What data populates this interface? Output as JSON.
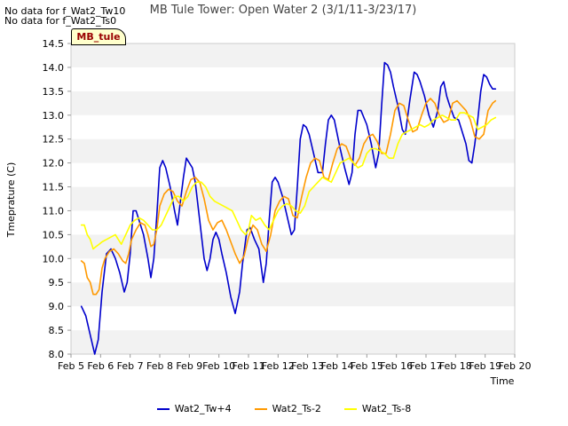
{
  "no_data_messages": [
    "No data for f_Wat2_Tw10",
    "No data for f_Wat2_Ts0"
  ],
  "site_label": "MB_tule",
  "chart_data": {
    "type": "line",
    "title": "MB Tule Tower: Open Water 2 (3/1/11-3/23/17)",
    "xlabel": "Time",
    "ylabel": "Tmeprature (C)",
    "xlim": [
      5,
      20
    ],
    "ylim": [
      8.0,
      14.5
    ],
    "x_ticks": [
      5,
      6,
      7,
      8,
      9,
      10,
      11,
      12,
      13,
      14,
      15,
      16,
      17,
      18,
      19,
      20
    ],
    "x_tick_labels": [
      "Feb 5",
      "Feb 6",
      "Feb 7",
      "Feb 8",
      "Feb 9",
      "Feb 10",
      "Feb 11",
      "Feb 12",
      "Feb 13",
      "Feb 14",
      "Feb 15",
      "Feb 16",
      "Feb 17",
      "Feb 18",
      "Feb 19",
      "Feb 20"
    ],
    "y_ticks": [
      8.0,
      8.5,
      9.0,
      9.5,
      10.0,
      10.5,
      11.0,
      11.5,
      12.0,
      12.5,
      13.0,
      13.5,
      14.0,
      14.5
    ],
    "y_tick_labels": [
      "8.0",
      "8.5",
      "9.0",
      "9.5",
      "10.0",
      "10.5",
      "11.0",
      "11.5",
      "12.0",
      "12.5",
      "13.0",
      "13.5",
      "14.0",
      "14.5"
    ],
    "grid": "horizontal alternating bands",
    "legend_position": "bottom",
    "series": [
      {
        "name": "Wat2_Tw+4",
        "color": "#0000cc",
        "x": [
          5.35,
          5.5,
          5.65,
          5.8,
          5.92,
          6.05,
          6.2,
          6.35,
          6.5,
          6.65,
          6.8,
          6.9,
          7.0,
          7.1,
          7.2,
          7.3,
          7.45,
          7.6,
          7.7,
          7.8,
          7.9,
          8.0,
          8.1,
          8.2,
          8.35,
          8.5,
          8.6,
          8.7,
          8.8,
          8.9,
          9.0,
          9.1,
          9.2,
          9.35,
          9.5,
          9.6,
          9.7,
          9.8,
          9.9,
          10.0,
          10.1,
          10.25,
          10.4,
          10.55,
          10.7,
          10.8,
          10.95,
          11.05,
          11.2,
          11.35,
          11.5,
          11.6,
          11.7,
          11.8,
          11.9,
          12.0,
          12.15,
          12.3,
          12.45,
          12.55,
          12.65,
          12.75,
          12.85,
          12.95,
          13.05,
          13.2,
          13.35,
          13.5,
          13.6,
          13.7,
          13.8,
          13.9,
          14.0,
          14.1,
          14.25,
          14.4,
          14.5,
          14.6,
          14.7,
          14.8,
          14.9,
          15.0,
          15.15,
          15.3,
          15.4,
          15.5,
          15.6,
          15.7,
          15.8,
          15.9,
          16.05,
          16.2,
          16.3,
          16.45,
          16.6,
          16.7,
          16.8,
          16.95,
          17.1,
          17.25,
          17.4,
          17.5,
          17.6,
          17.7,
          17.8,
          17.95,
          18.1,
          18.2,
          18.35,
          18.45,
          18.55,
          18.65,
          18.75,
          18.85,
          18.95,
          19.05,
          19.15,
          19.25,
          19.35
        ],
        "values": [
          9.0,
          8.8,
          8.4,
          8.0,
          8.3,
          9.3,
          10.1,
          10.2,
          10.0,
          9.7,
          9.3,
          9.5,
          10.1,
          11.0,
          11.0,
          10.8,
          10.5,
          10.0,
          9.6,
          10.0,
          10.9,
          11.9,
          12.05,
          11.9,
          11.5,
          11.0,
          10.7,
          11.2,
          11.7,
          12.1,
          12.0,
          11.9,
          11.6,
          10.8,
          10.0,
          9.75,
          10.0,
          10.4,
          10.55,
          10.4,
          10.1,
          9.7,
          9.2,
          8.85,
          9.3,
          9.9,
          10.6,
          10.65,
          10.4,
          10.2,
          9.5,
          9.9,
          10.8,
          11.6,
          11.7,
          11.6,
          11.3,
          10.9,
          10.5,
          10.6,
          11.5,
          12.5,
          12.8,
          12.75,
          12.6,
          12.2,
          11.8,
          11.8,
          12.4,
          12.9,
          13.0,
          12.9,
          12.6,
          12.3,
          11.9,
          11.55,
          11.8,
          12.6,
          13.1,
          13.1,
          12.95,
          12.8,
          12.4,
          11.9,
          12.2,
          13.2,
          14.1,
          14.05,
          13.9,
          13.6,
          13.2,
          12.7,
          12.6,
          13.3,
          13.9,
          13.85,
          13.7,
          13.4,
          13.0,
          12.75,
          13.1,
          13.6,
          13.7,
          13.4,
          13.2,
          12.95,
          12.9,
          12.7,
          12.4,
          12.05,
          12.0,
          12.4,
          12.9,
          13.5,
          13.85,
          13.8,
          13.65,
          13.55,
          13.55
        ],
        "end_x": 19.35
      },
      {
        "name": "Wat2_Ts-2",
        "color": "#ff9900",
        "x": [
          5.35,
          5.45,
          5.55,
          5.65,
          5.75,
          5.85,
          5.95,
          6.05,
          6.15,
          6.3,
          6.45,
          6.6,
          6.75,
          6.85,
          6.95,
          7.05,
          7.2,
          7.35,
          7.5,
          7.6,
          7.7,
          7.8,
          7.9,
          8.0,
          8.15,
          8.3,
          8.45,
          8.6,
          8.75,
          8.9,
          9.05,
          9.2,
          9.35,
          9.5,
          9.65,
          9.8,
          9.95,
          10.1,
          10.25,
          10.4,
          10.55,
          10.7,
          10.85,
          11.0,
          11.15,
          11.3,
          11.45,
          11.6,
          11.75,
          11.9,
          12.05,
          12.2,
          12.35,
          12.5,
          12.65,
          12.8,
          12.95,
          13.1,
          13.25,
          13.4,
          13.55,
          13.7,
          13.85,
          14.0,
          14.15,
          14.3,
          14.45,
          14.6,
          14.75,
          14.9,
          15.05,
          15.2,
          15.35,
          15.5,
          15.65,
          15.8,
          15.95,
          16.1,
          16.25,
          16.4,
          16.55,
          16.7,
          16.85,
          17.0,
          17.15,
          17.3,
          17.45,
          17.6,
          17.75,
          17.9,
          18.05,
          18.2,
          18.35,
          18.5,
          18.65,
          18.8,
          18.95,
          19.1,
          19.25,
          19.35
        ],
        "values": [
          9.95,
          9.9,
          9.6,
          9.5,
          9.25,
          9.25,
          9.35,
          9.8,
          10.0,
          10.15,
          10.2,
          10.1,
          9.95,
          9.9,
          10.1,
          10.4,
          10.6,
          10.75,
          10.7,
          10.5,
          10.25,
          10.3,
          10.6,
          11.1,
          11.35,
          11.45,
          11.4,
          11.2,
          11.1,
          11.4,
          11.65,
          11.7,
          11.6,
          11.25,
          10.8,
          10.6,
          10.75,
          10.8,
          10.6,
          10.35,
          10.1,
          9.9,
          10.05,
          10.45,
          10.7,
          10.6,
          10.3,
          10.15,
          10.5,
          11.0,
          11.2,
          11.3,
          11.25,
          10.9,
          10.85,
          11.3,
          11.7,
          12.0,
          12.1,
          12.05,
          11.7,
          11.65,
          12.0,
          12.3,
          12.4,
          12.35,
          12.1,
          11.95,
          12.1,
          12.4,
          12.55,
          12.6,
          12.45,
          12.2,
          12.2,
          12.6,
          13.1,
          13.25,
          13.2,
          12.9,
          12.65,
          12.7,
          13.0,
          13.25,
          13.35,
          13.25,
          13.0,
          12.85,
          12.9,
          13.25,
          13.3,
          13.2,
          13.1,
          12.9,
          12.55,
          12.5,
          12.6,
          13.1,
          13.25,
          13.3
        ],
        "end_x": 19.35
      },
      {
        "name": "Wat2_Ts-8",
        "color": "#ffff00",
        "x": [
          5.35,
          5.45,
          5.55,
          5.65,
          5.75,
          5.85,
          5.95,
          6.05,
          6.2,
          6.35,
          6.5,
          6.6,
          6.7,
          6.85,
          7.0,
          7.15,
          7.3,
          7.45,
          7.6,
          7.75,
          7.9,
          8.05,
          8.2,
          8.35,
          8.5,
          8.65,
          8.8,
          8.95,
          9.1,
          9.25,
          9.4,
          9.55,
          9.7,
          9.85,
          10.0,
          10.15,
          10.3,
          10.45,
          10.6,
          10.75,
          10.9,
          11.0,
          11.1,
          11.25,
          11.4,
          11.55,
          11.7,
          11.85,
          12.0,
          12.15,
          12.3,
          12.45,
          12.6,
          12.75,
          12.9,
          13.05,
          13.2,
          13.35,
          13.5,
          13.65,
          13.8,
          13.95,
          14.1,
          14.25,
          14.4,
          14.55,
          14.7,
          14.85,
          15.0,
          15.15,
          15.3,
          15.45,
          15.6,
          15.75,
          15.9,
          16.05,
          16.2,
          16.35,
          16.5,
          16.65,
          16.8,
          16.95,
          17.1,
          17.25,
          17.4,
          17.55,
          17.7,
          17.85,
          18.0,
          18.15,
          18.3,
          18.45,
          18.6,
          18.75,
          18.9,
          19.05,
          19.2,
          19.35
        ],
        "values": [
          10.7,
          10.7,
          10.5,
          10.4,
          10.2,
          10.25,
          10.3,
          10.35,
          10.4,
          10.45,
          10.5,
          10.4,
          10.3,
          10.5,
          10.7,
          10.8,
          10.85,
          10.8,
          10.7,
          10.6,
          10.6,
          10.7,
          10.9,
          11.1,
          11.3,
          11.3,
          11.2,
          11.3,
          11.5,
          11.6,
          11.6,
          11.5,
          11.3,
          11.2,
          11.15,
          11.1,
          11.05,
          11.0,
          10.8,
          10.6,
          10.5,
          10.6,
          10.9,
          10.8,
          10.85,
          10.7,
          10.6,
          10.8,
          11.0,
          11.1,
          11.15,
          11.1,
          11.0,
          10.95,
          11.1,
          11.4,
          11.5,
          11.6,
          11.7,
          11.65,
          11.6,
          11.8,
          12.0,
          12.05,
          12.1,
          12.0,
          11.9,
          11.95,
          12.2,
          12.3,
          12.3,
          12.25,
          12.2,
          12.1,
          12.1,
          12.4,
          12.6,
          12.65,
          12.7,
          12.75,
          12.8,
          12.75,
          12.8,
          12.9,
          12.95,
          13.0,
          12.95,
          12.9,
          12.9,
          13.05,
          13.05,
          13.0,
          12.95,
          12.7,
          12.75,
          12.8,
          12.9,
          12.95
        ],
        "end_x": 19.35
      }
    ]
  }
}
